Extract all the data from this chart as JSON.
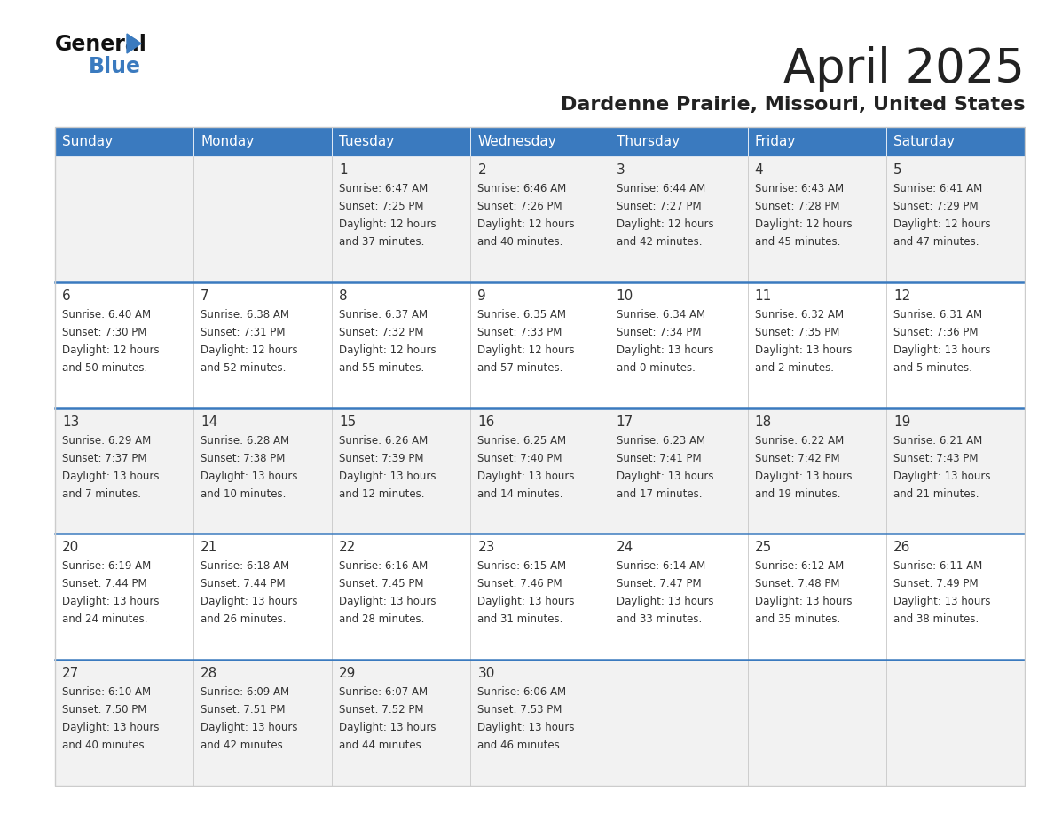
{
  "title": "April 2025",
  "subtitle": "Dardenne Prairie, Missouri, United States",
  "days_of_week": [
    "Sunday",
    "Monday",
    "Tuesday",
    "Wednesday",
    "Thursday",
    "Friday",
    "Saturday"
  ],
  "header_bg": "#3a7abf",
  "header_text": "#ffffff",
  "row_bg_odd": "#f2f2f2",
  "row_bg_even": "#ffffff",
  "separator_color": "#3a7abf",
  "grid_color": "#cccccc",
  "text_color": "#333333",
  "title_color": "#222222",
  "logo_black": "#111111",
  "logo_blue": "#3a7abf",
  "calendar_data": [
    [
      null,
      null,
      {
        "day": "1",
        "sunrise": "6:47 AM",
        "sunset": "7:25 PM",
        "daylight": "12 hours\nand 37 minutes."
      },
      {
        "day": "2",
        "sunrise": "6:46 AM",
        "sunset": "7:26 PM",
        "daylight": "12 hours\nand 40 minutes."
      },
      {
        "day": "3",
        "sunrise": "6:44 AM",
        "sunset": "7:27 PM",
        "daylight": "12 hours\nand 42 minutes."
      },
      {
        "day": "4",
        "sunrise": "6:43 AM",
        "sunset": "7:28 PM",
        "daylight": "12 hours\nand 45 minutes."
      },
      {
        "day": "5",
        "sunrise": "6:41 AM",
        "sunset": "7:29 PM",
        "daylight": "12 hours\nand 47 minutes."
      }
    ],
    [
      {
        "day": "6",
        "sunrise": "6:40 AM",
        "sunset": "7:30 PM",
        "daylight": "12 hours\nand 50 minutes."
      },
      {
        "day": "7",
        "sunrise": "6:38 AM",
        "sunset": "7:31 PM",
        "daylight": "12 hours\nand 52 minutes."
      },
      {
        "day": "8",
        "sunrise": "6:37 AM",
        "sunset": "7:32 PM",
        "daylight": "12 hours\nand 55 minutes."
      },
      {
        "day": "9",
        "sunrise": "6:35 AM",
        "sunset": "7:33 PM",
        "daylight": "12 hours\nand 57 minutes."
      },
      {
        "day": "10",
        "sunrise": "6:34 AM",
        "sunset": "7:34 PM",
        "daylight": "13 hours\nand 0 minutes."
      },
      {
        "day": "11",
        "sunrise": "6:32 AM",
        "sunset": "7:35 PM",
        "daylight": "13 hours\nand 2 minutes."
      },
      {
        "day": "12",
        "sunrise": "6:31 AM",
        "sunset": "7:36 PM",
        "daylight": "13 hours\nand 5 minutes."
      }
    ],
    [
      {
        "day": "13",
        "sunrise": "6:29 AM",
        "sunset": "7:37 PM",
        "daylight": "13 hours\nand 7 minutes."
      },
      {
        "day": "14",
        "sunrise": "6:28 AM",
        "sunset": "7:38 PM",
        "daylight": "13 hours\nand 10 minutes."
      },
      {
        "day": "15",
        "sunrise": "6:26 AM",
        "sunset": "7:39 PM",
        "daylight": "13 hours\nand 12 minutes."
      },
      {
        "day": "16",
        "sunrise": "6:25 AM",
        "sunset": "7:40 PM",
        "daylight": "13 hours\nand 14 minutes."
      },
      {
        "day": "17",
        "sunrise": "6:23 AM",
        "sunset": "7:41 PM",
        "daylight": "13 hours\nand 17 minutes."
      },
      {
        "day": "18",
        "sunrise": "6:22 AM",
        "sunset": "7:42 PM",
        "daylight": "13 hours\nand 19 minutes."
      },
      {
        "day": "19",
        "sunrise": "6:21 AM",
        "sunset": "7:43 PM",
        "daylight": "13 hours\nand 21 minutes."
      }
    ],
    [
      {
        "day": "20",
        "sunrise": "6:19 AM",
        "sunset": "7:44 PM",
        "daylight": "13 hours\nand 24 minutes."
      },
      {
        "day": "21",
        "sunrise": "6:18 AM",
        "sunset": "7:44 PM",
        "daylight": "13 hours\nand 26 minutes."
      },
      {
        "day": "22",
        "sunrise": "6:16 AM",
        "sunset": "7:45 PM",
        "daylight": "13 hours\nand 28 minutes."
      },
      {
        "day": "23",
        "sunrise": "6:15 AM",
        "sunset": "7:46 PM",
        "daylight": "13 hours\nand 31 minutes."
      },
      {
        "day": "24",
        "sunrise": "6:14 AM",
        "sunset": "7:47 PM",
        "daylight": "13 hours\nand 33 minutes."
      },
      {
        "day": "25",
        "sunrise": "6:12 AM",
        "sunset": "7:48 PM",
        "daylight": "13 hours\nand 35 minutes."
      },
      {
        "day": "26",
        "sunrise": "6:11 AM",
        "sunset": "7:49 PM",
        "daylight": "13 hours\nand 38 minutes."
      }
    ],
    [
      {
        "day": "27",
        "sunrise": "6:10 AM",
        "sunset": "7:50 PM",
        "daylight": "13 hours\nand 40 minutes."
      },
      {
        "day": "28",
        "sunrise": "6:09 AM",
        "sunset": "7:51 PM",
        "daylight": "13 hours\nand 42 minutes."
      },
      {
        "day": "29",
        "sunrise": "6:07 AM",
        "sunset": "7:52 PM",
        "daylight": "13 hours\nand 44 minutes."
      },
      {
        "day": "30",
        "sunrise": "6:06 AM",
        "sunset": "7:53 PM",
        "daylight": "13 hours\nand 46 minutes."
      },
      null,
      null,
      null
    ]
  ]
}
